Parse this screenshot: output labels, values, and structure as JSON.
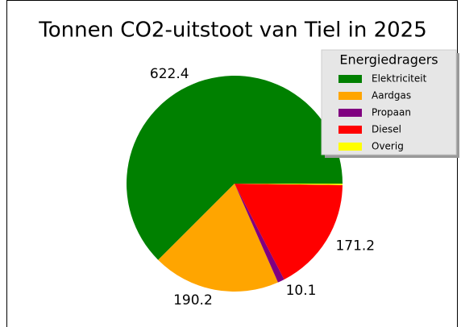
{
  "chart_data": {
    "type": "pie",
    "title": "Tonnen CO2-uitstoot van Tiel in 2025",
    "categories": [
      "Elektriciteit",
      "Aardgas",
      "Propaan",
      "Diesel",
      "Overig"
    ],
    "values": [
      622.4,
      190.2,
      10.1,
      171.2,
      2
    ],
    "value_labels": [
      "622.4",
      "190.2",
      "10.1",
      "171.2",
      null
    ],
    "colors": [
      "#008000",
      "#ffa500",
      "#800080",
      "#ff0000",
      "#ffff00"
    ],
    "legend_title": "Energiedragers",
    "legend": "upper right"
  }
}
